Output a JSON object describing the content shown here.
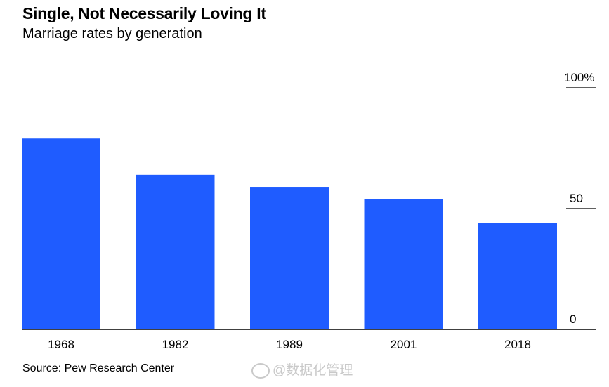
{
  "header": {
    "title": "Single, Not Necessarily Loving It",
    "subtitle": "Marriage rates by generation"
  },
  "footer": {
    "source": "Source: Pew Research Center",
    "watermark": "@数据化管理"
  },
  "colors": {
    "bar": "#1f5cff",
    "axis": "#000000"
  },
  "chart_data": {
    "type": "bar",
    "title": "Single, Not Necessarily Loving It",
    "subtitle": "Marriage rates by generation",
    "categories": [
      "1968",
      "1982",
      "1989",
      "2001",
      "2018"
    ],
    "values": [
      79,
      64,
      59,
      54,
      44
    ],
    "ylim": [
      0,
      100
    ],
    "yticks": [
      0,
      50,
      100
    ],
    "ytick_labels": [
      "0",
      "50",
      "100%"
    ],
    "xlabel": "",
    "ylabel": "",
    "grid": false,
    "legend": "none"
  }
}
